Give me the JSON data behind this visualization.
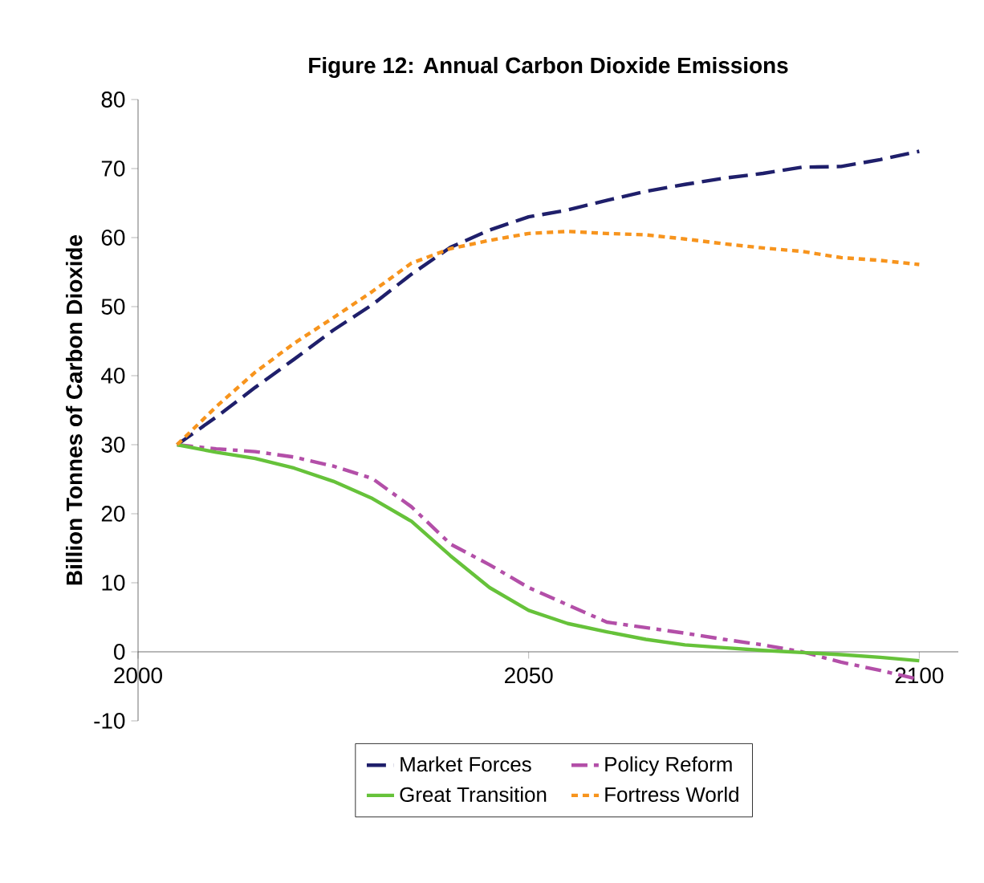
{
  "chart_data": {
    "type": "line",
    "title": "Figure 12: Annual Carbon Dioxide Emissions",
    "ylabel": "Billion Tonnes of Carbon Dioxide",
    "x": [
      2005,
      2010,
      2015,
      2020,
      2025,
      2030,
      2035,
      2040,
      2045,
      2050,
      2055,
      2060,
      2065,
      2070,
      2075,
      2080,
      2085,
      2090,
      2095,
      2100
    ],
    "xlim": [
      2000,
      2105
    ],
    "xticks": [
      2000,
      2050,
      2100
    ],
    "ylim": [
      -10,
      80
    ],
    "yticks": [
      -10,
      0,
      10,
      20,
      30,
      40,
      50,
      60,
      70,
      80
    ],
    "legend": "bottom",
    "series": [
      {
        "name": "Market Forces",
        "color": "#1f1f6b",
        "line_style": "dashed",
        "values": [
          30,
          34,
          38.3,
          42.4,
          46.6,
          50.3,
          54.7,
          58.6,
          61.1,
          63,
          64,
          65.4,
          66.7,
          67.7,
          68.6,
          69.3,
          70.2,
          70.3,
          71.3,
          72.5
        ]
      },
      {
        "name": "Policy Reform",
        "color": "#b34fa8",
        "line_style": "dashdot",
        "values": [
          30,
          29.4,
          29,
          28.2,
          26.9,
          25.1,
          21,
          15.6,
          12.6,
          9.3,
          6.8,
          4.3,
          3.5,
          2.7,
          1.8,
          1,
          0,
          -1.5,
          -2.7,
          -4
        ]
      },
      {
        "name": "Great Transition",
        "color": "#66c23a",
        "line_style": "solid",
        "values": [
          30,
          28.9,
          28,
          26.6,
          24.7,
          22.2,
          18.9,
          13.9,
          9.3,
          6,
          4.1,
          2.9,
          1.8,
          1,
          0.6,
          0.2,
          -0.1,
          -0.4,
          -0.8,
          -1.3
        ]
      },
      {
        "name": "Fortress World",
        "color": "#f7941d",
        "line_style": "dotted",
        "values": [
          30,
          35.5,
          40.5,
          44.7,
          48.4,
          52.2,
          56.3,
          58.4,
          59.6,
          60.6,
          60.9,
          60.6,
          60.4,
          59.8,
          59.1,
          58.5,
          58,
          57.1,
          56.7,
          56.1
        ]
      }
    ]
  }
}
